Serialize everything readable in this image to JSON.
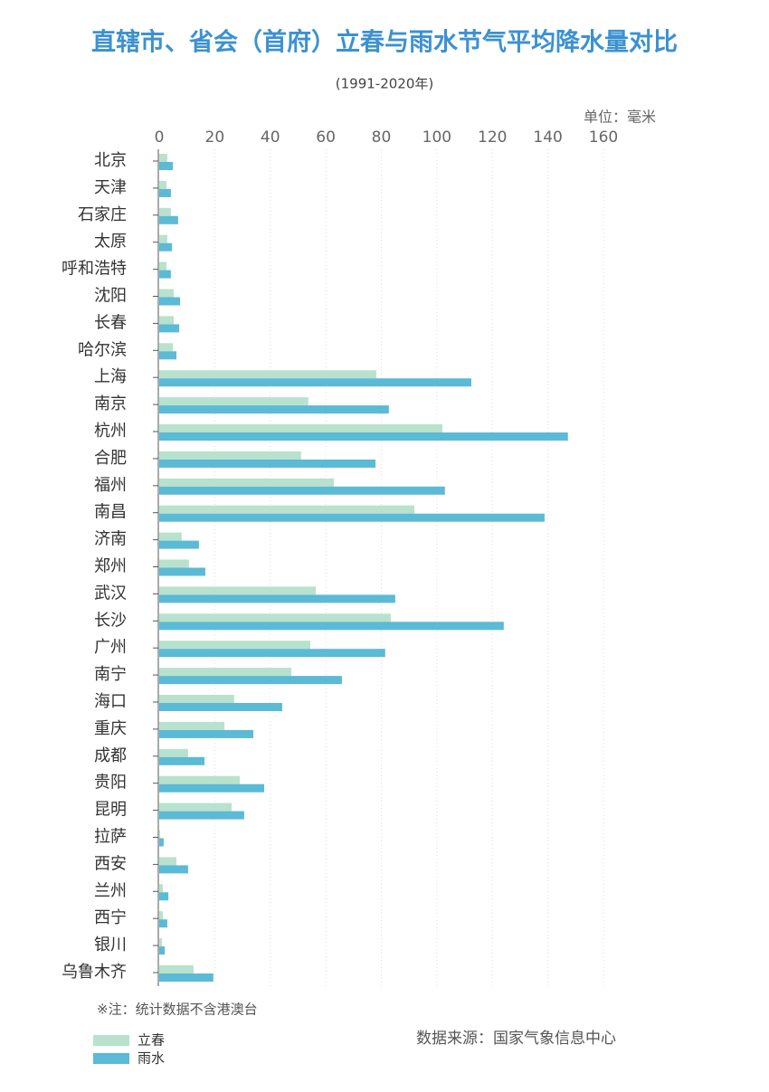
{
  "chart_data": {
    "type": "hbar",
    "title": "直辖市、省会（首府）立春与雨水节气平均降水量对比",
    "subtitle": "(1991-2020年)",
    "unit_label": "单位：毫米",
    "note": "※注：统计数据不含港澳台",
    "source": "数据来源：国家气象信息中心",
    "categories": [
      "北京",
      "天津",
      "石家庄",
      "太原",
      "呼和浩特",
      "沈阳",
      "长春",
      "哈尔滨",
      "上海",
      "南京",
      "杭州",
      "合肥",
      "福州",
      "南昌",
      "济南",
      "郑州",
      "武汉",
      "长沙",
      "广州",
      "南宁",
      "海口",
      "重庆",
      "成都",
      "贵阳",
      "昆明",
      "拉萨",
      "西安",
      "兰州",
      "西宁",
      "银川",
      "乌鲁木齐"
    ],
    "series": [
      {
        "name": "立春",
        "color": "#b8e2cd",
        "values": [
          2.9,
          2.6,
          4.2,
          2.9,
          2.6,
          5.2,
          5.2,
          4.9,
          78.2,
          53.7,
          102,
          51.1,
          62.9,
          91.9,
          8.1,
          10.7,
          56.4,
          83.4,
          54.4,
          47.6,
          27,
          23.5,
          10.4,
          29,
          26.1,
          0.3,
          6.2,
          1.3,
          1.3,
          1,
          12.4
        ]
      },
      {
        "name": "雨水",
        "color": "#5bbad5",
        "values": [
          4.9,
          4.2,
          6.8,
          4.6,
          4.2,
          7.5,
          7.2,
          6.2,
          112.4,
          82.7,
          147.2,
          77.9,
          102.9,
          138.8,
          14.3,
          16.6,
          85,
          124.1,
          81.4,
          65.8,
          44.3,
          33.9,
          16.3,
          37.8,
          30.6,
          1.6,
          10.4,
          3.3,
          2.9,
          2,
          19.5
        ]
      }
    ],
    "xlim": [
      0,
      160
    ],
    "xticks": [
      0,
      20,
      40,
      60,
      80,
      100,
      120,
      140,
      160
    ],
    "grid": true
  }
}
